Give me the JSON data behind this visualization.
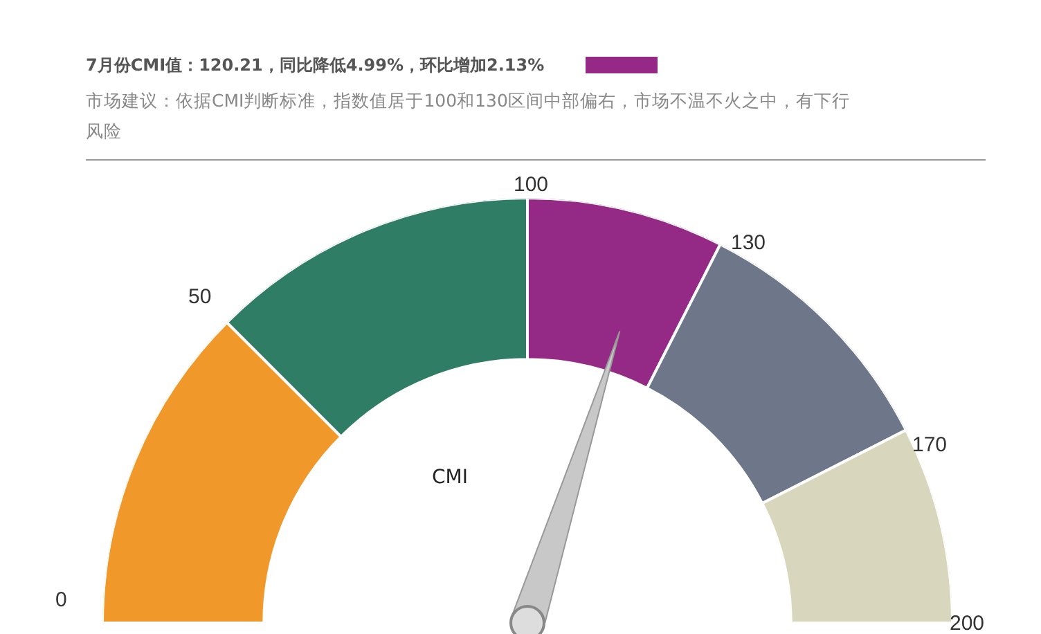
{
  "chart_data": {
    "type": "donut",
    "title": "7月份CMI值：120.21，同比降低4.99%，环比增加2.13%",
    "subtitle": "市场建议：依据CMI判断标准，指数值居于100和130区间中部偏右，市场不温不火之中，有下行风险",
    "categories": [
      "0",
      "50",
      "100",
      "130",
      "170"
    ],
    "values": [
      25,
      25,
      15,
      20,
      15
    ],
    "colors": [
      "#f0982a",
      "#2e7d64",
      "#952a86",
      "#6e7789",
      "#d8d6bc"
    ],
    "needle": "100",
    "annotations": [
      "CMI",
      "200"
    ],
    "legend": false
  }
}
